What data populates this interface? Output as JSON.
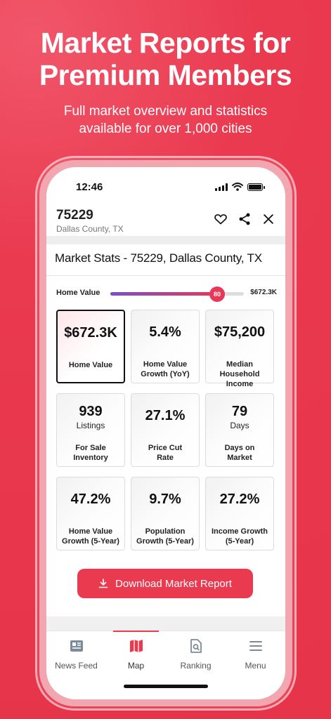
{
  "promo": {
    "title_line1": "Market Reports for",
    "title_line2": "Premium Members",
    "subtitle_line1": "Full market overview and statistics",
    "subtitle_line2": "available for over 1,000 cities"
  },
  "status_bar": {
    "time": "12:46"
  },
  "header": {
    "zip": "75229",
    "county": "Dallas County, TX"
  },
  "card": {
    "title": "Market Stats - 75229,  Dallas County, TX",
    "slider": {
      "label": "Home Value",
      "score": "80",
      "score_fraction": 0.8,
      "max_label": "$672.3K"
    }
  },
  "stats": [
    {
      "value": "$672.3K",
      "unit": "",
      "label1": "Home Value",
      "label2": ""
    },
    {
      "value": "5.4%",
      "unit": "",
      "label1": "Home Value",
      "label2": "Growth (YoY)"
    },
    {
      "value": "$75,200",
      "unit": "",
      "label1": "Median Household",
      "label2": "Income"
    },
    {
      "value": "939",
      "unit": "Listings",
      "label1": "For Sale",
      "label2": "Inventory"
    },
    {
      "value": "27.1%",
      "unit": "",
      "label1": "Price Cut",
      "label2": "Rate"
    },
    {
      "value": "79",
      "unit": "Days",
      "label1": "Days on",
      "label2": "Market"
    },
    {
      "value": "47.2%",
      "unit": "",
      "label1": "Home Value",
      "label2": "Growth (5-Year)"
    },
    {
      "value": "9.7%",
      "unit": "",
      "label1": "Population",
      "label2": "Growth (5-Year)"
    },
    {
      "value": "27.2%",
      "unit": "",
      "label1": "Income Growth",
      "label2": "(5-Year)"
    }
  ],
  "download_button": {
    "label": "Download Market Report"
  },
  "tabs": [
    {
      "label": "News Feed",
      "icon": "newspaper-icon"
    },
    {
      "label": "Map",
      "icon": "map-icon"
    },
    {
      "label": "Ranking",
      "icon": "document-search-icon"
    },
    {
      "label": "Menu",
      "icon": "hamburger-menu-icon"
    }
  ],
  "colors": {
    "accent": "#ea3a50",
    "background": "#e6344a",
    "slider_start": "#7b4fc8"
  }
}
